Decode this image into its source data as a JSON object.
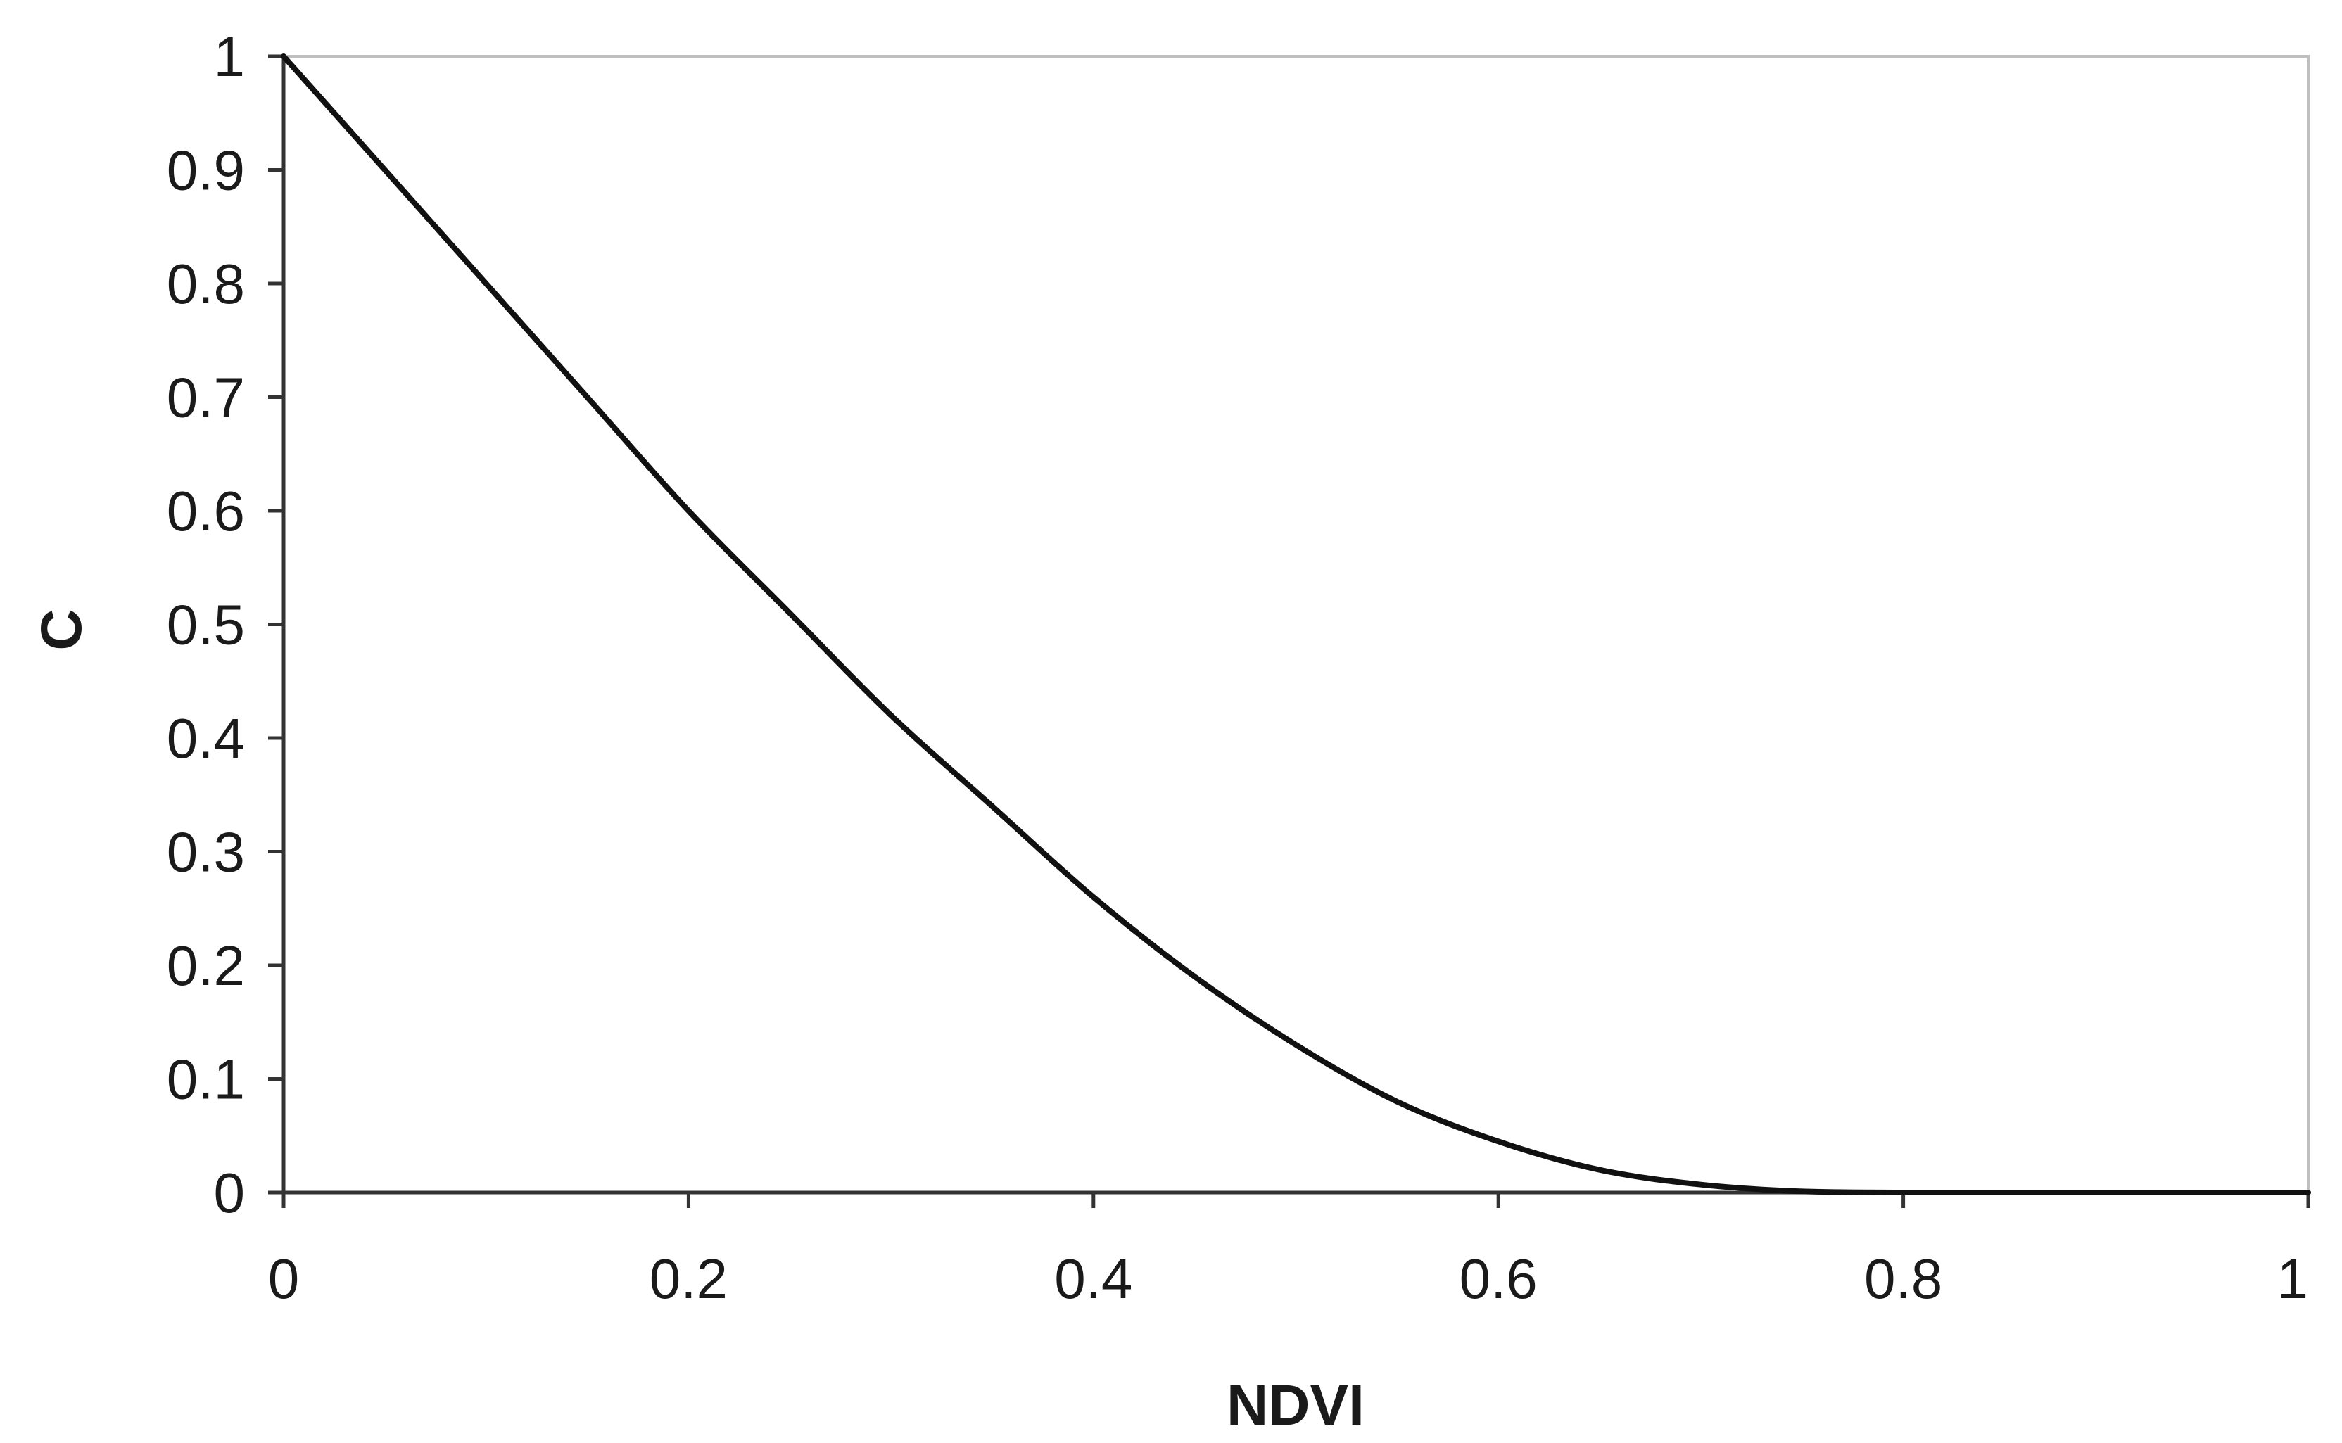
{
  "chart_data": {
    "type": "line",
    "title": "",
    "xlabel": "NDVI",
    "ylabel": "C",
    "xlim": [
      0,
      1
    ],
    "ylim": [
      0,
      1
    ],
    "x_ticks": [
      "0",
      "0.2",
      "0.4",
      "0.6",
      "0.8",
      "1"
    ],
    "y_ticks": [
      "0",
      "0.1",
      "0.2",
      "0.3",
      "0.4",
      "0.5",
      "0.6",
      "0.7",
      "0.8",
      "0.9",
      "1"
    ],
    "grid": false,
    "legend": "none",
    "series": [
      {
        "color": "#111111",
        "x": [
          0,
          0.05,
          0.1,
          0.15,
          0.2,
          0.25,
          0.3,
          0.35,
          0.4,
          0.45,
          0.5,
          0.55,
          0.6,
          0.65,
          0.7,
          0.75,
          0.8,
          0.85,
          0.9,
          0.95,
          1
        ],
        "y": [
          1,
          0.9,
          0.8,
          0.7,
          0.6,
          0.51,
          0.42,
          0.34,
          0.26,
          0.19,
          0.13,
          0.08,
          0.045,
          0.02,
          0.007,
          0.001,
          0,
          0,
          0,
          0,
          0
        ]
      }
    ]
  }
}
